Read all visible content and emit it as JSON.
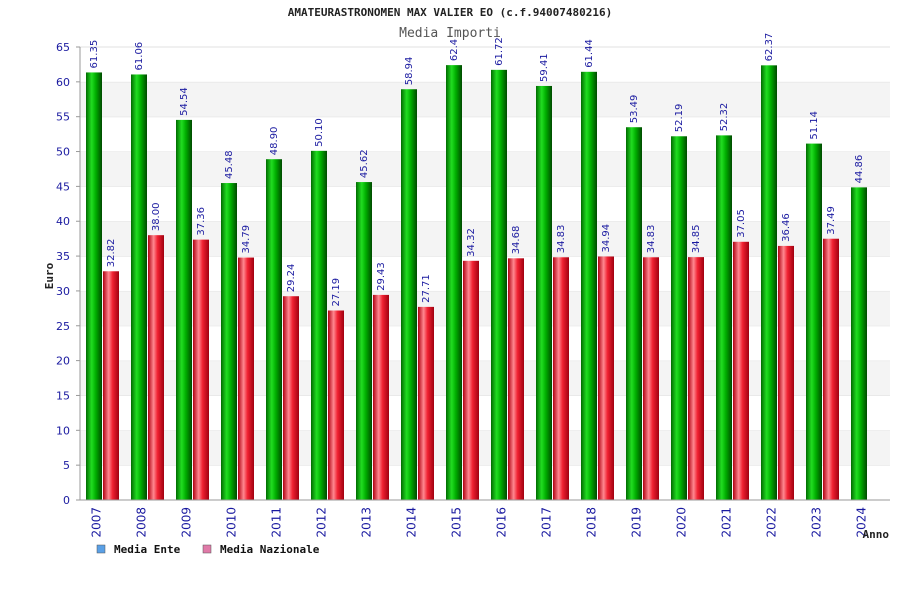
{
  "chart_data": {
    "type": "bar",
    "title": "AMATEURASTRONOMEN MAX VALIER EO (c.f.94007480216)",
    "subtitle": "Media Importi",
    "ylabel": "Euro",
    "xlabel": "Anno",
    "ylim": [
      0,
      65
    ],
    "yticks": [
      0,
      5,
      10,
      15,
      20,
      25,
      30,
      35,
      40,
      45,
      50,
      55,
      60,
      65
    ],
    "grid": "horizontal bands",
    "legend_position": "bottom-left",
    "categories": [
      "2007",
      "2008",
      "2009",
      "2010",
      "2011",
      "2012",
      "2013",
      "2014",
      "2015",
      "2016",
      "2017",
      "2018",
      "2019",
      "2020",
      "2021",
      "2022",
      "2023",
      "2024"
    ],
    "series": [
      {
        "name": "Media Ente",
        "color": "#00aa00",
        "legend_color": "#5aa0e6",
        "values": [
          61.35,
          61.06,
          54.54,
          45.48,
          48.9,
          50.1,
          45.62,
          58.94,
          62.4,
          61.72,
          59.41,
          61.44,
          53.49,
          52.19,
          52.32,
          62.37,
          51.14,
          44.86
        ],
        "labels": [
          "61.35",
          "61.06",
          "54.54",
          "45.48",
          "48.90",
          "50.10",
          "45.62",
          "58.94",
          "62.4",
          "61.72",
          "59.41",
          "61.44",
          "53.49",
          "52.19",
          "52.32",
          "62.37",
          "51.14",
          "44.86"
        ]
      },
      {
        "name": "Media Nazionale",
        "color": "#e8202a",
        "legend_color": "#e07aa8",
        "values": [
          32.82,
          38.0,
          37.36,
          34.79,
          29.24,
          27.19,
          29.43,
          27.71,
          34.32,
          34.68,
          34.83,
          34.94,
          34.83,
          34.85,
          37.05,
          36.46,
          37.49,
          null
        ],
        "labels": [
          "32.82",
          "38.00",
          "37.36",
          "34.79",
          "29.24",
          "27.19",
          "29.43",
          "27.71",
          "34.32",
          "34.68",
          "34.83",
          "34.94",
          "34.83",
          "34.85",
          "37.05",
          "36.46",
          "37.49",
          ""
        ]
      }
    ]
  }
}
